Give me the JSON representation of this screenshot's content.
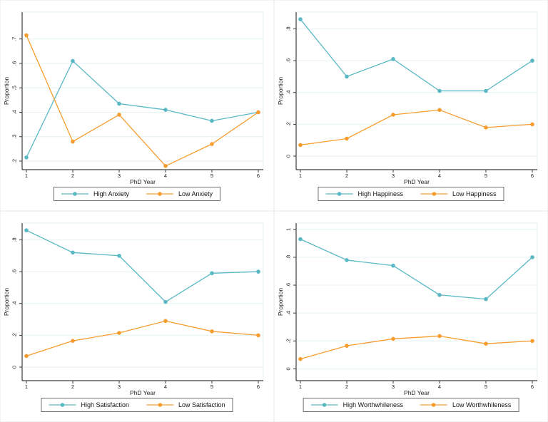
{
  "figure": {
    "background": "#ffffff",
    "panel_names": [
      "Anxiety",
      "Happiness",
      "Satisfaction",
      "Worthwhileness"
    ]
  },
  "colors": {
    "teal": "#5ab8c5",
    "orange": "#f79d2f",
    "gridline": "#e6f2f2",
    "plot_border": "#e3ecec",
    "axis": "#3d3d3d",
    "text": "#1a1a1a",
    "legend_border": "#6e6e6e"
  },
  "chart_data": [
    {
      "type": "line",
      "title": "",
      "xlabel": "PhD Year",
      "ylabel": "Proportion",
      "x": [
        1,
        2,
        3,
        4,
        5,
        6
      ],
      "xtick_labels": [
        "1",
        "2",
        "3",
        "4",
        "5",
        "6"
      ],
      "yticks": [
        0.2,
        0.3,
        0.4,
        0.5,
        0.6,
        0.7
      ],
      "ytick_labels": [
        ".2",
        ".3",
        ".4",
        ".5",
        ".6",
        ".7"
      ],
      "axis_range": [
        0.165,
        0.81
      ],
      "grid": true,
      "legend_position": "bottom",
      "series": [
        {
          "name": "High Anxiety",
          "color": "#5ab8c5",
          "values": [
            0.215,
            0.61,
            0.435,
            0.41,
            0.365,
            0.4
          ]
        },
        {
          "name": "Low Anxiety",
          "color": "#f79d2f",
          "values": [
            0.715,
            0.28,
            0.39,
            0.18,
            0.27,
            0.4
          ]
        }
      ]
    },
    {
      "type": "line",
      "title": "",
      "xlabel": "PhD Year",
      "ylabel": "Proportion",
      "x": [
        1,
        2,
        3,
        4,
        5,
        6
      ],
      "xtick_labels": [
        "1",
        "2",
        "3",
        "4",
        "5",
        "6"
      ],
      "yticks": [
        0,
        0.2,
        0.4,
        0.6,
        0.8
      ],
      "ytick_labels": [
        "0",
        ".2",
        ".4",
        ".6",
        ".8"
      ],
      "axis_range": [
        -0.085,
        0.905
      ],
      "grid": true,
      "legend_position": "bottom",
      "series": [
        {
          "name": "High Happiness",
          "color": "#5ab8c5",
          "values": [
            0.86,
            0.5,
            0.61,
            0.41,
            0.41,
            0.6
          ]
        },
        {
          "name": "Low Happiness",
          "color": "#f79d2f",
          "values": [
            0.07,
            0.11,
            0.26,
            0.29,
            0.18,
            0.2
          ]
        }
      ]
    },
    {
      "type": "line",
      "title": "",
      "xlabel": "PhD Year",
      "ylabel": "Proportion",
      "x": [
        1,
        2,
        3,
        4,
        5,
        6
      ],
      "xtick_labels": [
        "1",
        "2",
        "3",
        "4",
        "5",
        "6"
      ],
      "yticks": [
        0,
        0.2,
        0.4,
        0.6,
        0.8
      ],
      "ytick_labels": [
        "0",
        ".2",
        ".4",
        ".6",
        ".8"
      ],
      "axis_range": [
        -0.085,
        0.905
      ],
      "grid": true,
      "legend_position": "bottom",
      "series": [
        {
          "name": "High Satisfaction",
          "color": "#5ab8c5",
          "values": [
            0.86,
            0.72,
            0.7,
            0.41,
            0.59,
            0.6
          ]
        },
        {
          "name": "Low Satisfaction",
          "color": "#f79d2f",
          "values": [
            0.07,
            0.165,
            0.215,
            0.29,
            0.225,
            0.2
          ]
        }
      ]
    },
    {
      "type": "line",
      "title": "",
      "xlabel": "PhD Year",
      "ylabel": "Proportion",
      "x": [
        1,
        2,
        3,
        4,
        5,
        6
      ],
      "xtick_labels": [
        "1",
        "2",
        "3",
        "4",
        "5",
        "6"
      ],
      "yticks": [
        0,
        0.2,
        0.4,
        0.6,
        0.8,
        1
      ],
      "ytick_labels": [
        "0",
        ".2",
        ".4",
        ".6",
        ".8",
        "1"
      ],
      "axis_range": [
        -0.085,
        1.045
      ],
      "grid": true,
      "legend_position": "bottom",
      "series": [
        {
          "name": "High Worthwhileness",
          "color": "#5ab8c5",
          "values": [
            0.93,
            0.78,
            0.74,
            0.53,
            0.5,
            0.8
          ]
        },
        {
          "name": "Low Worthwhileness",
          "color": "#f79d2f",
          "values": [
            0.07,
            0.165,
            0.215,
            0.235,
            0.18,
            0.2
          ]
        }
      ]
    }
  ]
}
